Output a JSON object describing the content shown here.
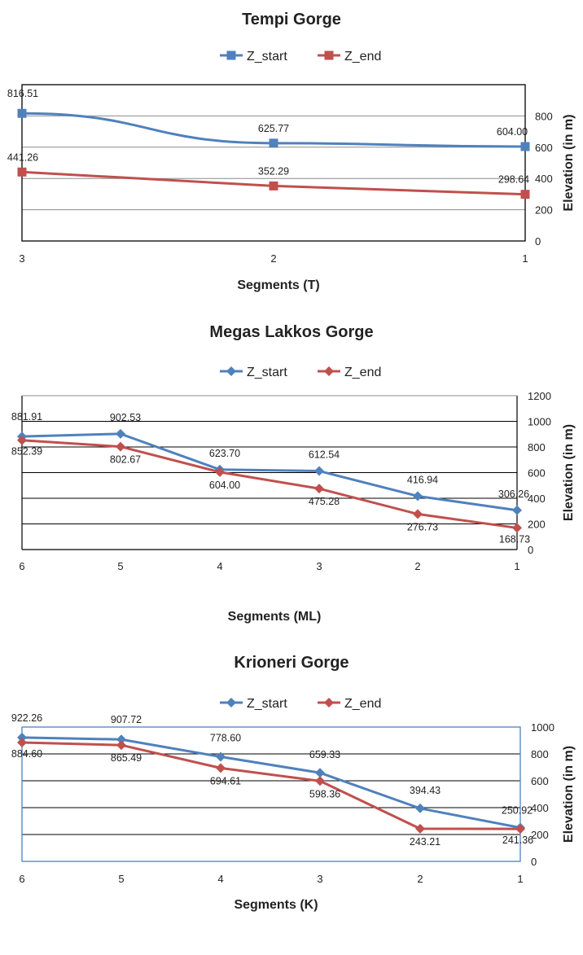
{
  "chart_data": [
    {
      "type": "line",
      "title": "Tempi Gorge",
      "xlabel": "Segments (T)",
      "ylabel": "Elevation (in m)",
      "categories": [
        "3",
        "2",
        "1"
      ],
      "ylim": [
        0,
        1000
      ],
      "yticks": [
        "0",
        "200",
        "400",
        "600",
        "800"
      ],
      "marker": "square",
      "series": [
        {
          "name": "Z_start",
          "color": "#4f81bd",
          "values": [
            816.51,
            625.77,
            604.0
          ],
          "labels": [
            "816.51",
            "625.77",
            "604.00"
          ]
        },
        {
          "name": "Z_end",
          "color": "#c0504d",
          "values": [
            441.26,
            352.29,
            298.64
          ],
          "labels": [
            "441.26",
            "352.29",
            "298.64"
          ]
        }
      ],
      "grid": true,
      "legend": "top"
    },
    {
      "type": "line",
      "title": "Megas Lakkos Gorge",
      "xlabel": "Segments (ML)",
      "ylabel": "Elevation (in m)",
      "categories": [
        "6",
        "5",
        "4",
        "3",
        "2",
        "1"
      ],
      "ylim": [
        0,
        1200
      ],
      "yticks": [
        "0",
        "200",
        "400",
        "600",
        "800",
        "1000",
        "1200"
      ],
      "marker": "diamond",
      "series": [
        {
          "name": "Z_start",
          "color": "#4f81bd",
          "values": [
            881.91,
            902.53,
            623.7,
            612.54,
            416.94,
            306.26
          ],
          "labels": [
            "881.91",
            "902.53",
            "623.70",
            "612.54",
            "416.94",
            "306.26"
          ]
        },
        {
          "name": "Z_end",
          "color": "#c0504d",
          "values": [
            852.39,
            802.67,
            604.0,
            475.28,
            276.73,
            168.73
          ],
          "labels": [
            "852.39",
            "802.67",
            "604.00",
            "475.28",
            "276.73",
            "168.73"
          ]
        }
      ],
      "grid": true,
      "legend": "top"
    },
    {
      "type": "line",
      "title": "Krioneri Gorge",
      "xlabel": "Segments (K)",
      "ylabel": "Elevation (in m)",
      "categories": [
        "6",
        "5",
        "4",
        "3",
        "2",
        "1"
      ],
      "ylim": [
        0,
        1000
      ],
      "yticks": [
        "0",
        "200",
        "400",
        "600",
        "800",
        "1000"
      ],
      "marker": "diamond",
      "series": [
        {
          "name": "Z_start",
          "color": "#4f81bd",
          "values": [
            922.26,
            907.72,
            778.6,
            659.33,
            394.43,
            250.92
          ],
          "labels": [
            "922.26",
            "907.72",
            "778.60",
            "659.33",
            "394.43",
            "250.92"
          ]
        },
        {
          "name": "Z_end",
          "color": "#c0504d",
          "values": [
            884.6,
            865.49,
            694.61,
            598.36,
            243.21,
            241.36
          ],
          "labels": [
            "884.60",
            "865.49",
            "694.61",
            "598.36",
            "243.21",
            "241.36"
          ]
        }
      ],
      "grid": true,
      "legend": "top"
    }
  ]
}
